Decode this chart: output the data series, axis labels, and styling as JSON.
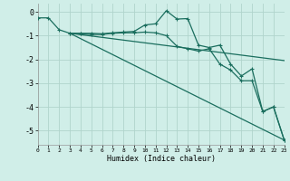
{
  "xlabel": "Humidex (Indice chaleur)",
  "bg_color": "#d0eee8",
  "grid_color": "#b0d4cc",
  "line_color": "#1a6e5e",
  "xlim": [
    0,
    23
  ],
  "ylim": [
    -5.6,
    0.35
  ],
  "yticks": [
    0,
    -1,
    -2,
    -3,
    -4,
    -5
  ],
  "xticks": [
    0,
    1,
    2,
    3,
    4,
    5,
    6,
    7,
    8,
    9,
    10,
    11,
    12,
    13,
    14,
    15,
    16,
    17,
    18,
    19,
    20,
    21,
    22,
    23
  ],
  "line1_x": [
    0,
    1,
    2,
    3,
    4,
    5,
    6,
    7,
    8,
    9,
    10,
    11,
    12,
    13,
    14,
    15,
    16,
    17,
    18,
    19,
    20,
    21,
    22,
    23
  ],
  "line1_y": [
    -0.25,
    -0.25,
    -0.75,
    -0.9,
    -0.9,
    -0.9,
    -0.92,
    -0.88,
    -0.85,
    -0.82,
    -0.55,
    -0.5,
    0.05,
    -0.3,
    -0.28,
    -1.4,
    -1.5,
    -1.4,
    -2.2,
    -2.7,
    -2.4,
    -4.2,
    -4.0,
    -5.4
  ],
  "line2_x": [
    3,
    4,
    5,
    6,
    7,
    8,
    9,
    10,
    11,
    12,
    13,
    14,
    15,
    16,
    17,
    18,
    19,
    20,
    21,
    22,
    23
  ],
  "line2_y": [
    -0.9,
    -0.92,
    -0.95,
    -0.95,
    -0.9,
    -0.88,
    -0.88,
    -0.85,
    -0.88,
    -1.0,
    -1.45,
    -1.55,
    -1.65,
    -1.55,
    -2.2,
    -2.45,
    -2.9,
    -2.9,
    -4.2,
    -4.0,
    -5.4
  ],
  "line3_x": [
    3,
    23
  ],
  "line3_y": [
    -0.9,
    -2.05
  ],
  "line4_x": [
    3,
    23
  ],
  "line4_y": [
    -0.9,
    -5.4
  ]
}
